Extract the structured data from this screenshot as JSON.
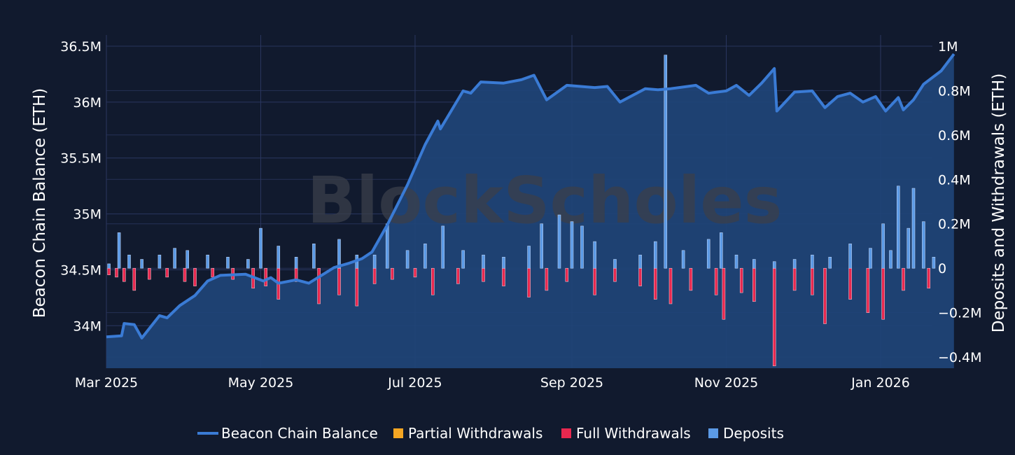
{
  "chart_data": {
    "type": "line",
    "watermark": "BlockScholes",
    "y_left_label": "Beacon Chain Balance (ETH)",
    "y_right_label": "Deposits and Withdrawals (ETH)",
    "x_ticks": [
      "Mar 2025",
      "May 2025",
      "Jul 2025",
      "Sep 2025",
      "Nov 2025",
      "Jan 2026"
    ],
    "x_tick_dates": [
      "2025-03-01",
      "2025-05-01",
      "2025-07-01",
      "2025-09-01",
      "2025-11-01",
      "2026-01-01"
    ],
    "x_range": [
      "2025-03-01",
      "2026-01-20"
    ],
    "y_left_ticks": [
      {
        "v": 34000000,
        "t": "34M"
      },
      {
        "v": 34500000,
        "t": "34.5M"
      },
      {
        "v": 35000000,
        "t": "35M"
      },
      {
        "v": 35500000,
        "t": "35.5M"
      },
      {
        "v": 36000000,
        "t": "36M"
      },
      {
        "v": 36500000,
        "t": "36.5M"
      }
    ],
    "y_left_range": [
      33620000,
      36600000
    ],
    "y_right_ticks": [
      {
        "v": -400000,
        "t": "−0.4M"
      },
      {
        "v": -200000,
        "t": "−0.2M"
      },
      {
        "v": 0,
        "t": "0"
      },
      {
        "v": 200000,
        "t": "0.2M"
      },
      {
        "v": 400000,
        "t": "0.4M"
      },
      {
        "v": 600000,
        "t": "0.6M"
      },
      {
        "v": 800000,
        "t": "0.8M"
      },
      {
        "v": 1000000,
        "t": "1M"
      }
    ],
    "y_right_range": [
      -450000,
      1050000
    ],
    "colors": {
      "balance": "#3a7bd5",
      "balance_fill": "#1f4478",
      "partial": "#f5a623",
      "full": "#e8284f",
      "deposits": "#5b9ae6"
    },
    "series": [
      {
        "name": "Beacon Chain Balance",
        "axis": "left",
        "type": "area",
        "points": [
          [
            "2025-03-01",
            33900000
          ],
          [
            "2025-03-07",
            33910000
          ],
          [
            "2025-03-08",
            34020000
          ],
          [
            "2025-03-12",
            34010000
          ],
          [
            "2025-03-15",
            33890000
          ],
          [
            "2025-03-22",
            34090000
          ],
          [
            "2025-03-25",
            34070000
          ],
          [
            "2025-03-30",
            34180000
          ],
          [
            "2025-04-05",
            34270000
          ],
          [
            "2025-04-10",
            34400000
          ],
          [
            "2025-04-15",
            34450000
          ],
          [
            "2025-04-25",
            34460000
          ],
          [
            "2025-05-02",
            34400000
          ],
          [
            "2025-05-05",
            34430000
          ],
          [
            "2025-05-08",
            34380000
          ],
          [
            "2025-05-15",
            34410000
          ],
          [
            "2025-05-20",
            34380000
          ],
          [
            "2025-05-25",
            34450000
          ],
          [
            "2025-05-30",
            34520000
          ],
          [
            "2025-06-05",
            34560000
          ],
          [
            "2025-06-10",
            34600000
          ],
          [
            "2025-06-14",
            34660000
          ],
          [
            "2025-06-20",
            34900000
          ],
          [
            "2025-06-28",
            35260000
          ],
          [
            "2025-07-05",
            35620000
          ],
          [
            "2025-07-10",
            35830000
          ],
          [
            "2025-07-11",
            35760000
          ],
          [
            "2025-07-20",
            36100000
          ],
          [
            "2025-07-23",
            36080000
          ],
          [
            "2025-07-27",
            36180000
          ],
          [
            "2025-08-05",
            36170000
          ],
          [
            "2025-08-12",
            36200000
          ],
          [
            "2025-08-17",
            36240000
          ],
          [
            "2025-08-22",
            36020000
          ],
          [
            "2025-08-30",
            36150000
          ],
          [
            "2025-09-10",
            36130000
          ],
          [
            "2025-09-15",
            36140000
          ],
          [
            "2025-09-20",
            36000000
          ],
          [
            "2025-09-30",
            36120000
          ],
          [
            "2025-10-05",
            36110000
          ],
          [
            "2025-10-10",
            36120000
          ],
          [
            "2025-10-20",
            36150000
          ],
          [
            "2025-10-25",
            36080000
          ],
          [
            "2025-11-01",
            36100000
          ],
          [
            "2025-11-05",
            36150000
          ],
          [
            "2025-11-10",
            36060000
          ],
          [
            "2025-11-15",
            36170000
          ],
          [
            "2025-11-20",
            36300000
          ],
          [
            "2025-11-21",
            35920000
          ],
          [
            "2025-11-28",
            36090000
          ],
          [
            "2025-12-05",
            36100000
          ],
          [
            "2025-12-10",
            35950000
          ],
          [
            "2025-12-15",
            36050000
          ],
          [
            "2025-12-20",
            36080000
          ],
          [
            "2025-12-25",
            36000000
          ],
          [
            "2025-12-30",
            36050000
          ],
          [
            "2026-01-03",
            35920000
          ],
          [
            "2026-01-08",
            36040000
          ],
          [
            "2026-01-10",
            35930000
          ],
          [
            "2026-01-14",
            36020000
          ],
          [
            "2026-01-18",
            36160000
          ],
          [
            "2026-01-25",
            36280000
          ],
          [
            "2026-01-30",
            36430000
          ]
        ]
      },
      {
        "name": "Partial Withdrawals",
        "axis": "right",
        "type": "bar",
        "values": []
      },
      {
        "name": "Full Withdrawals",
        "axis": "right",
        "type": "bar",
        "values": [
          [
            "2025-03-02",
            -30000
          ],
          [
            "2025-03-05",
            -40000
          ],
          [
            "2025-03-08",
            -60000
          ],
          [
            "2025-03-12",
            -100000
          ],
          [
            "2025-03-18",
            -50000
          ],
          [
            "2025-03-25",
            -40000
          ],
          [
            "2025-04-01",
            -60000
          ],
          [
            "2025-04-05",
            -80000
          ],
          [
            "2025-04-12",
            -40000
          ],
          [
            "2025-04-20",
            -50000
          ],
          [
            "2025-04-28",
            -90000
          ],
          [
            "2025-05-03",
            -80000
          ],
          [
            "2025-05-08",
            -140000
          ],
          [
            "2025-05-15",
            -60000
          ],
          [
            "2025-05-24",
            -160000
          ],
          [
            "2025-06-01",
            -120000
          ],
          [
            "2025-06-08",
            -170000
          ],
          [
            "2025-06-15",
            -70000
          ],
          [
            "2025-06-22",
            -50000
          ],
          [
            "2025-07-01",
            -40000
          ],
          [
            "2025-07-08",
            -120000
          ],
          [
            "2025-07-18",
            -70000
          ],
          [
            "2025-07-28",
            -60000
          ],
          [
            "2025-08-05",
            -80000
          ],
          [
            "2025-08-15",
            -130000
          ],
          [
            "2025-08-22",
            -100000
          ],
          [
            "2025-08-30",
            -60000
          ],
          [
            "2025-09-10",
            -120000
          ],
          [
            "2025-09-18",
            -60000
          ],
          [
            "2025-09-28",
            -80000
          ],
          [
            "2025-10-04",
            -140000
          ],
          [
            "2025-10-10",
            -160000
          ],
          [
            "2025-10-18",
            -100000
          ],
          [
            "2025-10-28",
            -120000
          ],
          [
            "2025-10-31",
            -230000
          ],
          [
            "2025-11-07",
            -110000
          ],
          [
            "2025-11-12",
            -150000
          ],
          [
            "2025-11-20",
            -440000
          ],
          [
            "2025-11-28",
            -100000
          ],
          [
            "2025-12-05",
            -120000
          ],
          [
            "2025-12-10",
            -250000
          ],
          [
            "2025-12-20",
            -140000
          ],
          [
            "2025-12-27",
            -200000
          ],
          [
            "2026-01-02",
            -230000
          ],
          [
            "2026-01-10",
            -100000
          ],
          [
            "2026-01-20",
            -90000
          ]
        ]
      },
      {
        "name": "Deposits",
        "axis": "right",
        "type": "bar",
        "values": [
          [
            "2025-03-02",
            20000
          ],
          [
            "2025-03-06",
            160000
          ],
          [
            "2025-03-10",
            60000
          ],
          [
            "2025-03-15",
            40000
          ],
          [
            "2025-03-22",
            60000
          ],
          [
            "2025-03-28",
            90000
          ],
          [
            "2025-04-02",
            80000
          ],
          [
            "2025-04-10",
            60000
          ],
          [
            "2025-04-18",
            50000
          ],
          [
            "2025-04-26",
            40000
          ],
          [
            "2025-05-01",
            180000
          ],
          [
            "2025-05-08",
            100000
          ],
          [
            "2025-05-15",
            50000
          ],
          [
            "2025-05-22",
            110000
          ],
          [
            "2025-06-01",
            130000
          ],
          [
            "2025-06-08",
            60000
          ],
          [
            "2025-06-15",
            60000
          ],
          [
            "2025-06-20",
            200000
          ],
          [
            "2025-06-28",
            80000
          ],
          [
            "2025-07-05",
            110000
          ],
          [
            "2025-07-12",
            190000
          ],
          [
            "2025-07-20",
            80000
          ],
          [
            "2025-07-28",
            60000
          ],
          [
            "2025-08-05",
            50000
          ],
          [
            "2025-08-15",
            100000
          ],
          [
            "2025-08-20",
            200000
          ],
          [
            "2025-08-27",
            240000
          ],
          [
            "2025-09-01",
            210000
          ],
          [
            "2025-09-05",
            190000
          ],
          [
            "2025-09-10",
            120000
          ],
          [
            "2025-09-18",
            40000
          ],
          [
            "2025-09-28",
            60000
          ],
          [
            "2025-10-04",
            120000
          ],
          [
            "2025-10-08",
            960000
          ],
          [
            "2025-10-15",
            80000
          ],
          [
            "2025-10-25",
            130000
          ],
          [
            "2025-10-30",
            160000
          ],
          [
            "2025-11-05",
            60000
          ],
          [
            "2025-11-12",
            40000
          ],
          [
            "2025-11-20",
            30000
          ],
          [
            "2025-11-28",
            40000
          ],
          [
            "2025-12-05",
            60000
          ],
          [
            "2025-12-12",
            50000
          ],
          [
            "2025-12-20",
            110000
          ],
          [
            "2025-12-28",
            90000
          ],
          [
            "2026-01-02",
            200000
          ],
          [
            "2026-01-05",
            80000
          ],
          [
            "2026-01-08",
            370000
          ],
          [
            "2026-01-12",
            180000
          ],
          [
            "2026-01-14",
            360000
          ],
          [
            "2026-01-18",
            210000
          ],
          [
            "2026-01-22",
            50000
          ]
        ]
      }
    ],
    "legend": [
      {
        "name": "Beacon Chain Balance",
        "marker": "line",
        "color": "#3a7bd5"
      },
      {
        "name": "Partial Withdrawals",
        "marker": "square",
        "color": "#f5a623"
      },
      {
        "name": "Full Withdrawals",
        "marker": "square",
        "color": "#e8284f"
      },
      {
        "name": "Deposits",
        "marker": "square",
        "color": "#5b9ae6"
      }
    ],
    "legend_position": "bottom-center",
    "grid": true
  }
}
